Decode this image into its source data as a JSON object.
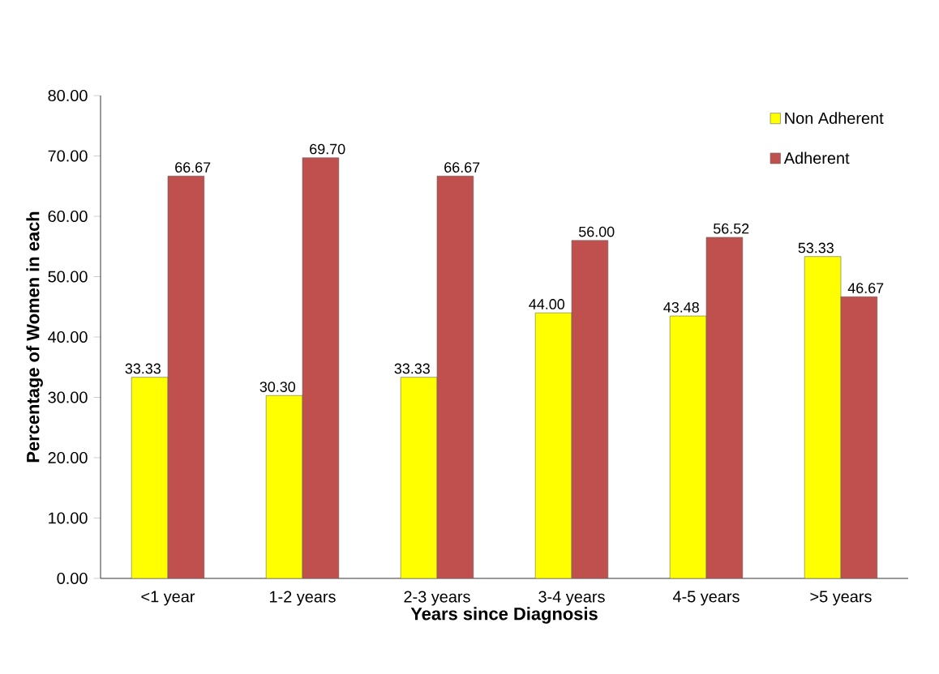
{
  "chart_data": {
    "type": "bar",
    "xlabel": "Years since Diagnosis",
    "ylabel": "Percentage of Women in each",
    "categories": [
      "<1 year",
      "1-2 years",
      "2-3 years",
      "3-4 years",
      "4-5 years",
      ">5 years"
    ],
    "series": [
      {
        "name": "Non Adherent",
        "color": "#ffff00",
        "values": [
          33.33,
          30.3,
          33.33,
          44.0,
          43.48,
          53.33
        ],
        "value_labels": [
          "33.33",
          "30.30",
          "33.33",
          "44.00",
          "43.48",
          "53.33"
        ]
      },
      {
        "name": "Adherent",
        "color": "#c0504d",
        "values": [
          66.67,
          69.7,
          66.67,
          56.0,
          56.52,
          46.67
        ],
        "value_labels": [
          "66.67",
          "69.70",
          "66.67",
          "56.00",
          "56.52",
          "46.67"
        ]
      }
    ],
    "ylim": [
      0,
      80
    ],
    "yticks": [
      {
        "value": 0,
        "label": "0.00"
      },
      {
        "value": 10,
        "label": "10.00"
      },
      {
        "value": 20,
        "label": "20.00"
      },
      {
        "value": 30,
        "label": "30.00"
      },
      {
        "value": 40,
        "label": "40.00"
      },
      {
        "value": 50,
        "label": "50.00"
      },
      {
        "value": 60,
        "label": "60.00"
      },
      {
        "value": 70,
        "label": "70.00"
      },
      {
        "value": 80,
        "label": "80.00"
      }
    ],
    "legend": "top right",
    "grid": false
  }
}
